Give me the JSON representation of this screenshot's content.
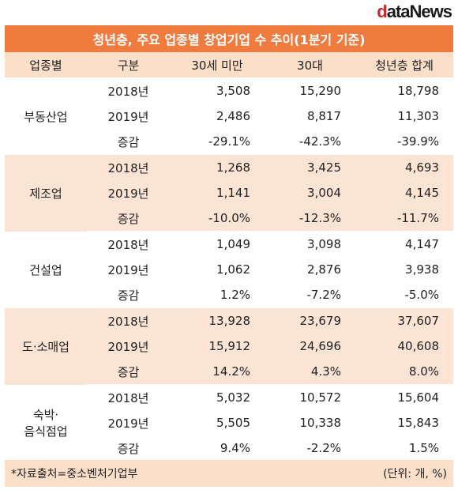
{
  "header": {
    "logo": "dataNews",
    "title": "청년층, 주요 업종별 창업기업 수 추이(1분기 기준)"
  },
  "table": {
    "columns": [
      "업종별",
      "구분",
      "30세 미만",
      "30대",
      "청년층 합계"
    ],
    "groups": [
      {
        "name": [
          "부동산업"
        ],
        "rows": [
          [
            "2018년",
            "3,508",
            "15,290",
            "18,798"
          ],
          [
            "2019년",
            "2,486",
            "8,817",
            "11,303"
          ],
          [
            "증감",
            "-29.1%",
            "-42.3%",
            "-39.9%"
          ]
        ]
      },
      {
        "name": [
          "제조업"
        ],
        "rows": [
          [
            "2018년",
            "1,268",
            "3,425",
            "4,693"
          ],
          [
            "2019년",
            "1,141",
            "3,004",
            "4,145"
          ],
          [
            "증감",
            "-10.0%",
            "-12.3%",
            "-11.7%"
          ]
        ]
      },
      {
        "name": [
          "건설업"
        ],
        "rows": [
          [
            "2018년",
            "1,049",
            "3,098",
            "4,147"
          ],
          [
            "2019년",
            "1,062",
            "2,876",
            "3,938"
          ],
          [
            "증감",
            "1.2%",
            "-7.2%",
            "-5.0%"
          ]
        ]
      },
      {
        "name": [
          "도·소매업"
        ],
        "rows": [
          [
            "2018년",
            "13,928",
            "23,679",
            "37,607"
          ],
          [
            "2019년",
            "15,912",
            "24,696",
            "40,608"
          ],
          [
            "증감",
            "14.2%",
            "4.3%",
            "8.0%"
          ]
        ]
      },
      {
        "name": [
          "숙박·",
          "음식점업"
        ],
        "rows": [
          [
            "2018년",
            "5,032",
            "10,572",
            "15,604"
          ],
          [
            "2019년",
            "5,505",
            "10,338",
            "15,843"
          ],
          [
            "증감",
            "9.4%",
            "-2.2%",
            "1.5%"
          ]
        ]
      }
    ]
  },
  "footer": {
    "source": "*자료출처=중소벤처기업부",
    "unit": "(단위: 개, %)"
  }
}
